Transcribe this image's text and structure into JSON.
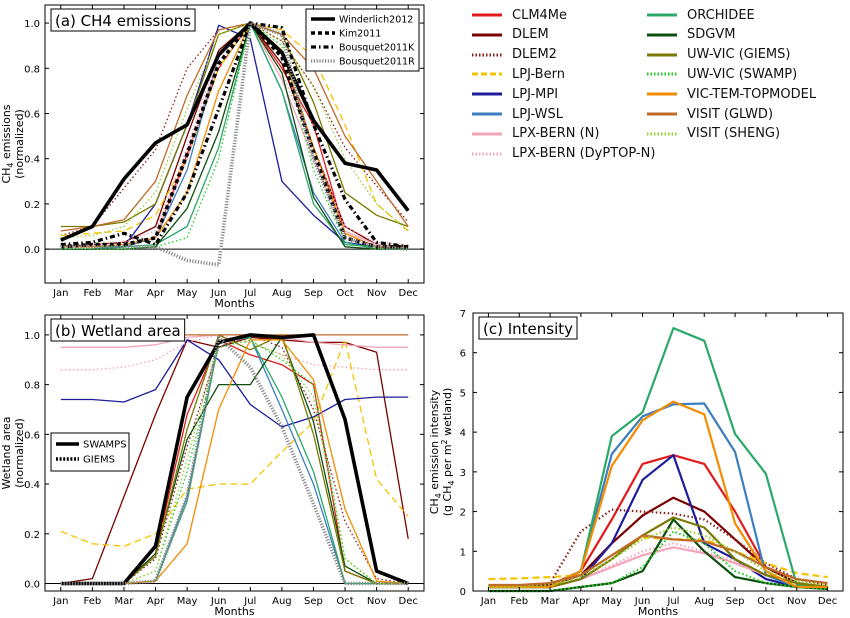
{
  "legend": {
    "entries": [
      {
        "key": "CLM4Me",
        "label": "CLM4Me",
        "color": "#e31a1c",
        "dash": "solid"
      },
      {
        "key": "DLEM",
        "label": "DLEM",
        "color": "#7b0000",
        "dash": "solid"
      },
      {
        "key": "DLEM2",
        "label": "DLEM2",
        "color": "#8b1a1a",
        "dash": "dotted"
      },
      {
        "key": "LPJ-Bern",
        "label": "LPJ-Bern",
        "color": "#f5c400",
        "dash": "dashed"
      },
      {
        "key": "LPJ-MPI",
        "label": "LPJ-MPI",
        "color": "#1c1c9c",
        "dash": "solid"
      },
      {
        "key": "LPJ-WSL",
        "label": "LPJ-WSL",
        "color": "#3b7ec2",
        "dash": "solid"
      },
      {
        "key": "LPX-BERN (N)",
        "label": "LPX-BERN (N)",
        "color": "#f4a6b8",
        "dash": "solid"
      },
      {
        "key": "LPX-BERN (DyPTOP-N)",
        "label": "LPX-BERN (DyPTOP-N)",
        "color": "#f4a6b8",
        "dash": "dotted"
      },
      {
        "key": "ORCHIDEE",
        "label": "ORCHIDEE",
        "color": "#2ca86a",
        "dash": "solid"
      },
      {
        "key": "SDGVM",
        "label": "SDGVM",
        "color": "#0d4f0d",
        "dash": "solid"
      },
      {
        "key": "UW-VIC (GIEMS)",
        "label": "UW-VIC (GIEMS)",
        "color": "#7a7a00",
        "dash": "solid"
      },
      {
        "key": "UW-VIC (SWAMP)",
        "label": "UW-VIC (SWAMP)",
        "color": "#22cc22",
        "dash": "dotted"
      },
      {
        "key": "VIC-TEM-TOPMODEL",
        "label": "VIC-TEM-TOPMODEL",
        "color": "#f28c00",
        "dash": "solid"
      },
      {
        "key": "VISIT (GLWD)",
        "label": "VISIT (GLWD)",
        "color": "#c06a28",
        "dash": "solid"
      },
      {
        "key": "VISIT (SHENG)",
        "label": "VISIT (SHENG)",
        "color": "#9acd32",
        "dash": "dotted"
      }
    ]
  },
  "chart_data": [
    {
      "type": "line",
      "title": "(a) CH4 emissions",
      "xlabel": "Months",
      "ylabel": "CH4 emissions (normalized)",
      "categories": [
        "Jan",
        "Feb",
        "Mar",
        "Apr",
        "May",
        "Jun",
        "Jul",
        "Aug",
        "Sep",
        "Oct",
        "Nov",
        "Dec"
      ],
      "ylim": [
        -0.15,
        1.08
      ],
      "yticks": [
        "0.0",
        "0.2",
        "0.4",
        "0.6",
        "0.8",
        "1.0"
      ],
      "yticks_values": [
        0.0,
        0.2,
        0.4,
        0.6,
        0.8,
        1.0
      ],
      "legend_position": "top-right",
      "obs_series": [
        {
          "name": "Winderlich2012",
          "style": "thick-solid",
          "values": [
            0.04,
            0.1,
            0.31,
            0.47,
            0.55,
            0.86,
            1.0,
            0.87,
            0.57,
            0.38,
            0.35,
            0.17
          ]
        },
        {
          "name": "Kim2011",
          "style": "thick-dashed",
          "values": [
            0.01,
            0.02,
            0.02,
            0.05,
            0.42,
            0.82,
            1.0,
            0.85,
            0.43,
            0.05,
            0.01,
            0.01
          ]
        },
        {
          "name": "Bousquet2011K",
          "style": "dashdot",
          "values": [
            0.02,
            0.03,
            0.07,
            0.02,
            0.25,
            0.62,
            1.0,
            0.98,
            0.55,
            0.22,
            0.03,
            0.01
          ]
        },
        {
          "name": "Bousquet2011R",
          "style": "thick-dotted",
          "values": [
            0.01,
            0.01,
            0.01,
            0.01,
            -0.05,
            -0.07,
            1.0,
            0.95,
            0.4,
            0.05,
            0.01,
            0.0
          ]
        }
      ],
      "series": [
        {
          "key": "CLM4Me",
          "values": [
            0.0,
            0.0,
            0.01,
            0.05,
            0.42,
            0.8,
            1.0,
            0.8,
            0.55,
            0.07,
            0.01,
            0.0
          ]
        },
        {
          "key": "DLEM",
          "values": [
            0.01,
            0.02,
            0.03,
            0.1,
            0.5,
            0.88,
            1.0,
            0.82,
            0.45,
            0.1,
            0.02,
            0.01
          ]
        },
        {
          "key": "DLEM2",
          "values": [
            0.06,
            0.1,
            0.27,
            0.44,
            0.8,
            0.97,
            1.0,
            0.92,
            0.72,
            0.45,
            0.28,
            0.12
          ]
        },
        {
          "key": "LPJ-Bern",
          "values": [
            0.06,
            0.07,
            0.08,
            0.15,
            0.4,
            0.8,
            1.0,
            0.97,
            0.85,
            0.55,
            0.2,
            0.08
          ]
        },
        {
          "key": "LPJ-MPI",
          "values": [
            0.0,
            0.0,
            0.01,
            0.2,
            0.55,
            0.99,
            0.93,
            0.3,
            0.15,
            0.03,
            0.01,
            0.0
          ]
        },
        {
          "key": "LPJ-WSL",
          "values": [
            0.0,
            0.0,
            0.01,
            0.05,
            0.35,
            0.85,
            1.0,
            0.7,
            0.25,
            0.03,
            0.0,
            0.0
          ]
        },
        {
          "key": "LPX-BERN (N)",
          "values": [
            0.01,
            0.01,
            0.02,
            0.05,
            0.4,
            0.85,
            1.0,
            0.75,
            0.4,
            0.08,
            0.02,
            0.01
          ]
        },
        {
          "key": "LPX-BERN (DyPTOP-N)",
          "values": [
            0.02,
            0.02,
            0.03,
            0.08,
            0.45,
            0.87,
            1.0,
            0.78,
            0.45,
            0.1,
            0.03,
            0.02
          ]
        },
        {
          "key": "ORCHIDEE",
          "values": [
            0.01,
            0.01,
            0.01,
            0.02,
            0.1,
            0.45,
            1.0,
            0.7,
            0.2,
            0.02,
            0.01,
            0.01
          ]
        },
        {
          "key": "SDGVM",
          "values": [
            0.0,
            0.0,
            0.0,
            0.01,
            0.18,
            0.52,
            1.0,
            0.78,
            0.23,
            0.01,
            0.0,
            0.0
          ]
        },
        {
          "key": "UW-VIC (GIEMS)",
          "values": [
            0.1,
            0.1,
            0.12,
            0.2,
            0.55,
            0.95,
            1.0,
            0.95,
            0.65,
            0.25,
            0.15,
            0.1
          ]
        },
        {
          "key": "UW-VIC (SWAMP)",
          "values": [
            0.0,
            0.0,
            0.0,
            0.01,
            0.05,
            0.4,
            1.0,
            0.9,
            0.35,
            0.03,
            0.0,
            0.0
          ]
        },
        {
          "key": "VIC-TEM-TOPMODEL",
          "values": [
            0.01,
            0.01,
            0.02,
            0.05,
            0.25,
            0.7,
            1.0,
            0.88,
            0.45,
            0.07,
            0.01,
            0.01
          ]
        },
        {
          "key": "VISIT (GLWD)",
          "values": [
            0.08,
            0.1,
            0.13,
            0.3,
            0.68,
            0.97,
            1.0,
            0.95,
            0.8,
            0.5,
            0.3,
            0.1
          ]
        },
        {
          "key": "VISIT (SHENG)",
          "values": [
            0.05,
            0.06,
            0.1,
            0.25,
            0.62,
            0.95,
            1.0,
            0.92,
            0.72,
            0.4,
            0.2,
            0.08
          ]
        }
      ]
    },
    {
      "type": "line",
      "title": "(b) Wetland area",
      "xlabel": "Months",
      "ylabel": "Wetland area (normalized)",
      "categories": [
        "Jan",
        "Feb",
        "Mar",
        "Apr",
        "May",
        "Jun",
        "Jul",
        "Aug",
        "Sep",
        "Oct",
        "Nov",
        "Dec"
      ],
      "ylim": [
        -0.03,
        1.08
      ],
      "yticks": [
        "0.0",
        "0.2",
        "0.4",
        "0.6",
        "0.8",
        "1.0"
      ],
      "yticks_values": [
        0.0,
        0.2,
        0.4,
        0.6,
        0.8,
        1.0
      ],
      "legend_position": "center-left",
      "obs_series": [
        {
          "name": "SWAMPS",
          "style": "thick-solid",
          "values": [
            0.0,
            0.0,
            0.0,
            0.15,
            0.75,
            0.97,
            1.0,
            0.99,
            1.0,
            0.66,
            0.05,
            0.0
          ]
        },
        {
          "name": "GIEMS",
          "style": "thick-dotted",
          "values": [
            0.0,
            0.0,
            0.0,
            0.01,
            0.35,
            0.99,
            0.87,
            0.63,
            0.32,
            0.0,
            0.0,
            0.0
          ]
        }
      ],
      "series": [
        {
          "key": "CLM4Me",
          "values": [
            0.0,
            0.0,
            0.0,
            0.12,
            0.68,
            0.98,
            0.92,
            0.88,
            0.8,
            0.05,
            0.0,
            0.0
          ]
        },
        {
          "key": "DLEM",
          "values": [
            0.0,
            0.02,
            0.35,
            0.68,
            0.98,
            0.95,
            0.99,
            0.98,
            0.97,
            0.97,
            0.93,
            0.18
          ]
        },
        {
          "key": "DLEM2",
          "values": [
            0.0,
            0.0,
            0.0,
            0.1,
            0.55,
            0.95,
            1.0,
            0.95,
            0.7,
            0.25,
            0.02,
            0.0
          ]
        },
        {
          "key": "LPJ-Bern",
          "values": [
            0.21,
            0.16,
            0.15,
            0.2,
            0.38,
            0.4,
            0.4,
            0.53,
            0.65,
            0.98,
            0.42,
            0.27
          ]
        },
        {
          "key": "LPJ-MPI",
          "values": [
            0.74,
            0.74,
            0.73,
            0.78,
            0.98,
            0.9,
            0.72,
            0.63,
            0.67,
            0.74,
            0.75,
            0.75
          ]
        },
        {
          "key": "LPJ-WSL",
          "values": [
            0.0,
            0.0,
            0.0,
            0.01,
            0.35,
            0.97,
            0.99,
            0.7,
            0.4,
            0.0,
            0.0,
            0.0
          ]
        },
        {
          "key": "LPX-BERN (N)",
          "values": [
            0.95,
            0.95,
            0.95,
            0.96,
            0.99,
            1.0,
            1.0,
            0.99,
            0.97,
            0.96,
            0.95,
            0.95
          ]
        },
        {
          "key": "LPX-BERN (DyPTOP-N)",
          "values": [
            0.86,
            0.86,
            0.87,
            0.9,
            0.97,
            1.0,
            0.97,
            0.92,
            0.88,
            0.87,
            0.86,
            0.86
          ]
        },
        {
          "key": "ORCHIDEE",
          "values": [
            0.0,
            0.0,
            0.0,
            0.01,
            0.33,
            0.97,
            0.99,
            0.75,
            0.45,
            0.0,
            0.0,
            0.0
          ]
        },
        {
          "key": "SDGVM",
          "values": [
            0.0,
            0.0,
            0.0,
            0.12,
            0.58,
            0.8,
            0.8,
            0.99,
            0.65,
            0.07,
            0.0,
            0.0
          ]
        },
        {
          "key": "UW-VIC (GIEMS)",
          "values": [
            0.0,
            0.0,
            0.0,
            0.11,
            0.62,
            1.0,
            0.94,
            1.0,
            0.6,
            0.05,
            0.0,
            0.0
          ]
        },
        {
          "key": "UW-VIC (SWAMP)",
          "values": [
            0.0,
            0.0,
            0.0,
            0.05,
            0.45,
            0.95,
            0.98,
            0.9,
            0.8,
            0.1,
            0.0,
            0.0
          ]
        },
        {
          "key": "VIC-TEM-TOPMODEL",
          "values": [
            0.0,
            0.0,
            0.0,
            0.01,
            0.16,
            0.7,
            0.98,
            0.98,
            0.82,
            0.3,
            0.01,
            0.0
          ]
        },
        {
          "key": "VISIT (GLWD)",
          "values": [
            1.0,
            1.0,
            1.0,
            1.0,
            1.0,
            1.0,
            1.0,
            1.0,
            1.0,
            1.0,
            1.0,
            1.0
          ]
        },
        {
          "key": "VISIT (SHENG)",
          "values": [
            0.0,
            0.0,
            0.0,
            0.05,
            0.5,
            0.97,
            0.97,
            0.92,
            0.75,
            0.1,
            0.0,
            0.0
          ]
        }
      ]
    },
    {
      "type": "line",
      "title": "(c) Intensity",
      "xlabel": "Months",
      "ylabel": "CH4 emission intensity (g CH4 per m2 wetland)",
      "categories": [
        "Jan",
        "Feb",
        "Mar",
        "Apr",
        "May",
        "Jun",
        "Jul",
        "Aug",
        "Sep",
        "Oct",
        "Nov",
        "Dec"
      ],
      "ylim": [
        0,
        7
      ],
      "yticks": [
        "0",
        "1",
        "2",
        "3",
        "4",
        "5",
        "6",
        "7"
      ],
      "yticks_values": [
        0,
        1,
        2,
        3,
        4,
        5,
        6,
        7
      ],
      "series": [
        {
          "key": "CLM4Me",
          "values": [
            0.1,
            0.1,
            0.15,
            0.5,
            1.8,
            3.2,
            3.42,
            3.2,
            2.0,
            0.6,
            0.2,
            0.1
          ]
        },
        {
          "key": "DLEM",
          "values": [
            0.1,
            0.1,
            0.15,
            0.4,
            1.2,
            1.9,
            2.35,
            2.0,
            1.3,
            0.6,
            0.2,
            0.1
          ]
        },
        {
          "key": "DLEM2",
          "values": [
            0.1,
            0.1,
            0.2,
            1.5,
            2.05,
            2.0,
            1.95,
            1.8,
            1.3,
            0.7,
            0.3,
            0.15
          ]
        },
        {
          "key": "LPJ-Bern",
          "values": [
            0.3,
            0.32,
            0.35,
            0.4,
            0.9,
            1.35,
            1.3,
            1.3,
            1.0,
            0.7,
            0.45,
            0.35
          ]
        },
        {
          "key": "LPJ-MPI",
          "values": [
            0.1,
            0.1,
            0.1,
            0.3,
            1.2,
            2.8,
            3.42,
            1.2,
            0.8,
            0.3,
            0.1,
            0.1
          ]
        },
        {
          "key": "LPJ-WSL",
          "values": [
            0.1,
            0.1,
            0.1,
            0.5,
            3.45,
            4.4,
            4.7,
            4.72,
            3.5,
            0.4,
            0.1,
            0.1
          ]
        },
        {
          "key": "LPX-BERN (N)",
          "values": [
            0.1,
            0.1,
            0.1,
            0.3,
            0.6,
            0.9,
            1.1,
            0.95,
            0.7,
            0.4,
            0.2,
            0.1
          ]
        },
        {
          "key": "LPX-BERN (DyPTOP-N)",
          "values": [
            0.1,
            0.1,
            0.1,
            0.3,
            0.65,
            1.0,
            1.2,
            1.0,
            0.75,
            0.4,
            0.2,
            0.1
          ]
        },
        {
          "key": "ORCHIDEE",
          "values": [
            0.1,
            0.1,
            0.1,
            0.5,
            3.9,
            4.5,
            6.62,
            6.3,
            3.95,
            2.95,
            0.15,
            0.1
          ]
        },
        {
          "key": "SDGVM",
          "values": [
            0.0,
            0.0,
            0.0,
            0.1,
            0.2,
            0.5,
            1.8,
            1.0,
            0.35,
            0.2,
            0.1,
            0.05
          ]
        },
        {
          "key": "UW-VIC (GIEMS)",
          "values": [
            0.1,
            0.1,
            0.1,
            0.3,
            0.8,
            1.4,
            1.85,
            1.6,
            0.8,
            0.4,
            0.2,
            0.1
          ]
        },
        {
          "key": "UW-VIC (SWAMP)",
          "values": [
            0.0,
            0.0,
            0.0,
            0.1,
            0.2,
            0.6,
            1.5,
            1.2,
            0.5,
            0.2,
            0.1,
            0.05
          ]
        },
        {
          "key": "VIC-TEM-TOPMODEL",
          "values": [
            0.1,
            0.1,
            0.1,
            0.5,
            3.15,
            4.3,
            4.77,
            4.45,
            1.7,
            0.5,
            0.1,
            0.1
          ]
        },
        {
          "key": "VISIT (GLWD)",
          "values": [
            0.15,
            0.15,
            0.2,
            0.4,
            0.9,
            1.4,
            1.3,
            1.25,
            1.0,
            0.6,
            0.3,
            0.2
          ]
        },
        {
          "key": "VISIT (SHENG)",
          "values": [
            0.1,
            0.1,
            0.15,
            0.35,
            0.8,
            1.3,
            1.6,
            1.4,
            1.0,
            0.5,
            0.25,
            0.15
          ]
        }
      ]
    }
  ]
}
